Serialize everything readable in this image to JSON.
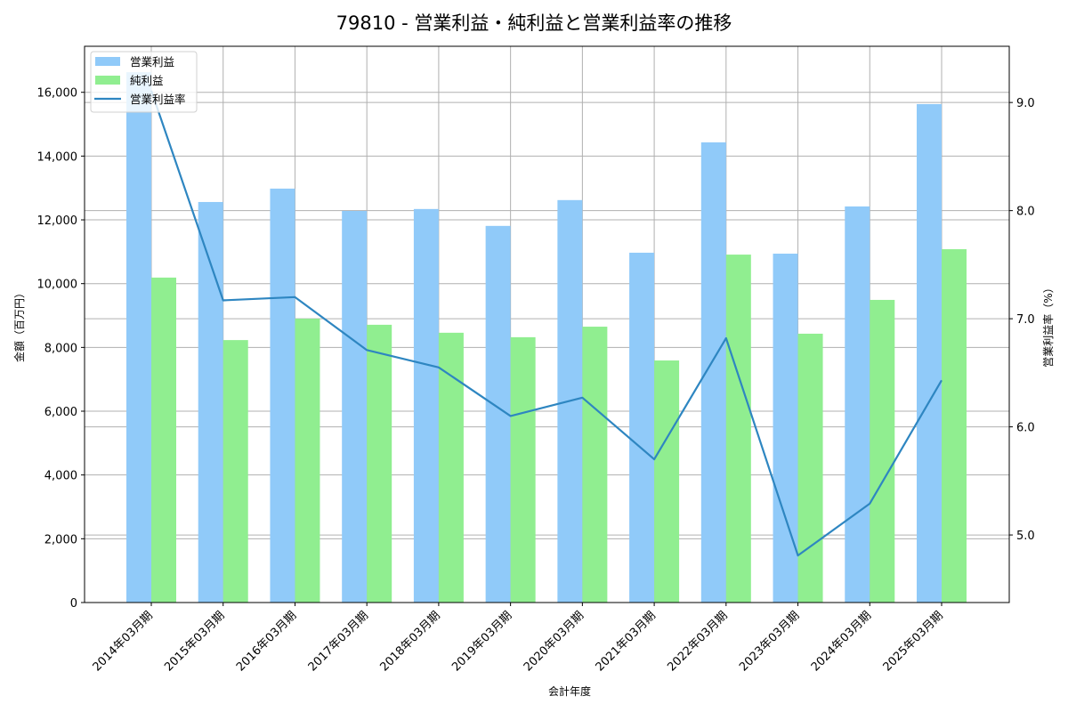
{
  "chart_data": {
    "type": "bar",
    "title": "79810 - 営業利益・純利益と営業利益率の推移",
    "xlabel": "会計年度",
    "ylabel": "金額（百万円）",
    "ylabel_right": "営業利益率（%）",
    "categories": [
      "2014年03月期",
      "2015年03月期",
      "2016年03月期",
      "2017年03月期",
      "2018年03月期",
      "2019年03月期",
      "2020年03月期",
      "2021年03月期",
      "2022年03月期",
      "2023年03月期",
      "2024年03月期",
      "2025年03月期"
    ],
    "series": [
      {
        "name": "営業利益",
        "type": "bar",
        "axis": "left",
        "color": "#90caf9",
        "values": [
          16630,
          12560,
          12980,
          12280,
          12340,
          11810,
          12620,
          10970,
          14430,
          10940,
          12420,
          15630
        ]
      },
      {
        "name": "純利益",
        "type": "bar",
        "axis": "left",
        "color": "#90ee90",
        "values": [
          10190,
          8230,
          8900,
          8710,
          8460,
          8320,
          8650,
          7590,
          10910,
          8430,
          9490,
          11080
        ]
      },
      {
        "name": "営業利益率",
        "type": "line",
        "axis": "right",
        "color": "#2e86c1",
        "values": [
          9.11,
          7.17,
          7.2,
          6.71,
          6.55,
          6.1,
          6.27,
          5.7,
          6.82,
          4.81,
          5.29,
          6.43
        ]
      }
    ],
    "ylim": [
      0,
      17443
    ],
    "ylim_right": [
      4.375,
      9.52
    ],
    "yticks": [
      0,
      2000,
      4000,
      6000,
      8000,
      10000,
      12000,
      14000,
      16000
    ],
    "ytick_labels": [
      "0",
      "2,000",
      "4,000",
      "6,000",
      "8,000",
      "10,000",
      "12,000",
      "14,000",
      "16,000"
    ],
    "yticks_right": [
      5.0,
      6.0,
      7.0,
      8.0,
      9.0
    ],
    "ytick_labels_right": [
      "5.0",
      "6.0",
      "7.0",
      "8.0",
      "9.0"
    ],
    "grid": true,
    "legend_position": "upper left",
    "legend": [
      "営業利益",
      "純利益",
      "営業利益率"
    ]
  },
  "colors": {
    "operating_profit": "#90caf9",
    "net_profit": "#90ee90",
    "margin_line": "#2e86c1",
    "grid": "#b0b0b0"
  }
}
